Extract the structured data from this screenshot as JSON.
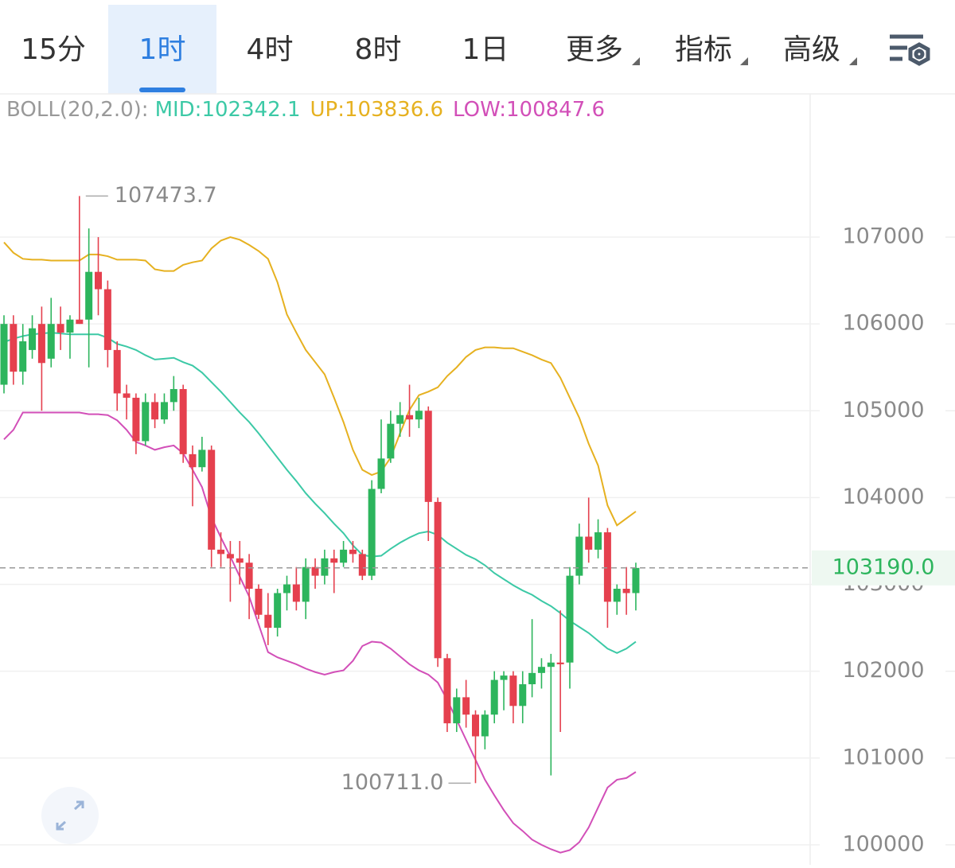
{
  "tabs": [
    "15分",
    "1时",
    "4时",
    "8时",
    "1日",
    "更多",
    "指标",
    "高级"
  ],
  "active_tab": 1,
  "chart_data": {
    "type": "candlestick",
    "indicator": {
      "name": "BOLL(20,2.0):",
      "mid": "MID:102342.1",
      "up": "UP:103836.6",
      "low": "LOW:100847.6"
    },
    "max_label": "107473.7",
    "min_label": "100711.0",
    "last_price_label": "103190.0",
    "up_color": "#2db55d",
    "down_color": "#e5404e",
    "ylim": [
      99770,
      108650
    ],
    "yticks": [
      100000,
      101000,
      102000,
      103000,
      104000,
      105000,
      106000,
      107000
    ],
    "grid": true,
    "open": [
      105300,
      106000,
      105450,
      105700,
      106000,
      105600,
      106000,
      105900,
      106050,
      106050,
      106600,
      106400,
      105700,
      105200,
      105150,
      104650,
      105100,
      104900,
      105100,
      105250,
      104500,
      104350,
      104550,
      103400,
      103350,
      103300,
      103250,
      102950,
      102650,
      102500,
      102900,
      103000,
      102800,
      103200,
      103100,
      103300,
      103250,
      103400,
      103350,
      103100,
      104100,
      104450,
      104850,
      104950,
      104900,
      105000,
      103950,
      102150,
      101400,
      101700,
      101500,
      101250,
      101500,
      101900,
      101950,
      101600,
      101850,
      101980,
      102050,
      102100,
      102100,
      103100,
      103550,
      103400,
      103600,
      102800,
      102950,
      102900
    ],
    "high": [
      106100,
      106100,
      106000,
      106100,
      106200,
      106300,
      106200,
      106100,
      107473.7,
      107100,
      107000,
      106500,
      105800,
      105300,
      105200,
      105200,
      105200,
      105200,
      105400,
      105300,
      104600,
      104700,
      104600,
      103600,
      103500,
      103500,
      103350,
      103000,
      102900,
      102950,
      103100,
      103200,
      103300,
      103300,
      103400,
      103400,
      103500,
      103500,
      103400,
      104200,
      104900,
      105000,
      105100,
      105300,
      105150,
      105050,
      104000,
      102200,
      101800,
      101900,
      101550,
      101550,
      102000,
      102000,
      102000,
      102000,
      102600,
      102150,
      102200,
      102700,
      103200,
      103700,
      104000,
      103750,
      103650,
      103000,
      103200,
      103250
    ],
    "low": [
      105200,
      105300,
      105300,
      105600,
      105000,
      105500,
      105700,
      105600,
      106000,
      105500,
      106100,
      105500,
      105000,
      104900,
      104500,
      104600,
      104800,
      104850,
      105000,
      104400,
      103900,
      104300,
      103200,
      103200,
      102800,
      103000,
      102600,
      102600,
      102300,
      102400,
      102700,
      102700,
      102600,
      102950,
      103000,
      102900,
      103200,
      103250,
      103050,
      103050,
      104050,
      104400,
      104700,
      104700,
      104800,
      103500,
      102050,
      101300,
      101300,
      101350,
      100711.0,
      101100,
      101400,
      101550,
      101400,
      101400,
      101700,
      101800,
      100800,
      101300,
      101800,
      103000,
      103250,
      103300,
      102500,
      102650,
      102650,
      102700
    ],
    "close": [
      106000,
      105450,
      105800,
      105950,
      105550,
      106000,
      105900,
      106050,
      106000,
      106600,
      106400,
      105700,
      105200,
      105150,
      104650,
      105100,
      104900,
      105100,
      105250,
      104500,
      104350,
      104550,
      103400,
      103350,
      103300,
      103250,
      102950,
      102650,
      102500,
      102900,
      103000,
      102800,
      103200,
      103100,
      103300,
      103250,
      103400,
      103350,
      103100,
      104100,
      104450,
      104850,
      104950,
      104900,
      105000,
      103950,
      102150,
      101400,
      101700,
      101500,
      101250,
      101500,
      101900,
      101950,
      101600,
      101850,
      101980,
      102050,
      102100,
      102080,
      103100,
      103550,
      103400,
      103600,
      102800,
      102950,
      102900,
      103190
    ],
    "series": [
      {
        "name": "UP",
        "color": "#e6b120",
        "values": [
          106940,
          106820,
          106750,
          106740,
          106740,
          106730,
          106730,
          106730,
          106730,
          106800,
          106800,
          106780,
          106740,
          106740,
          106740,
          106730,
          106630,
          106610,
          106610,
          106680,
          106710,
          106730,
          106870,
          106960,
          107000,
          106970,
          106910,
          106840,
          106750,
          106480,
          106110,
          105900,
          105700,
          105560,
          105420,
          105150,
          104870,
          104550,
          104320,
          104260,
          104300,
          104460,
          104740,
          105010,
          105180,
          105220,
          105270,
          105400,
          105500,
          105620,
          105700,
          105730,
          105730,
          105720,
          105720,
          105680,
          105640,
          105590,
          105550,
          105380,
          105150,
          104920,
          104620,
          104370,
          103910,
          103680,
          103760,
          103840
        ]
      },
      {
        "name": "MID",
        "color": "#3cc9a6",
        "values": [
          105790,
          105830,
          105860,
          105880,
          105890,
          105900,
          105890,
          105880,
          105880,
          105880,
          105880,
          105840,
          105770,
          105740,
          105700,
          105640,
          105590,
          105600,
          105610,
          105560,
          105520,
          105440,
          105330,
          105220,
          105100,
          104980,
          104870,
          104740,
          104600,
          104460,
          104320,
          104190,
          104050,
          103930,
          103820,
          103700,
          103590,
          103450,
          103340,
          103320,
          103330,
          103410,
          103480,
          103540,
          103590,
          103610,
          103570,
          103480,
          103410,
          103340,
          103290,
          103220,
          103130,
          103060,
          102990,
          102930,
          102880,
          102810,
          102750,
          102670,
          102580,
          102510,
          102440,
          102350,
          102260,
          102210,
          102260,
          102340
        ]
      },
      {
        "name": "LOW",
        "color": "#d24fb8",
        "values": [
          104670,
          104780,
          104980,
          104980,
          104980,
          104980,
          104980,
          104980,
          104980,
          104960,
          104960,
          104950,
          104890,
          104780,
          104640,
          104600,
          104550,
          104580,
          104600,
          104510,
          104320,
          104120,
          103770,
          103540,
          103320,
          103090,
          102860,
          102540,
          102220,
          102160,
          102120,
          102080,
          102030,
          101990,
          101960,
          101990,
          102010,
          102120,
          102290,
          102340,
          102330,
          102260,
          102170,
          102080,
          102010,
          101960,
          101870,
          101670,
          101440,
          101210,
          100980,
          100750,
          100570,
          100400,
          100250,
          100160,
          100060,
          100000,
          99950,
          99910,
          99940,
          100030,
          100200,
          100430,
          100660,
          100750,
          100770,
          100840
        ]
      }
    ]
  }
}
